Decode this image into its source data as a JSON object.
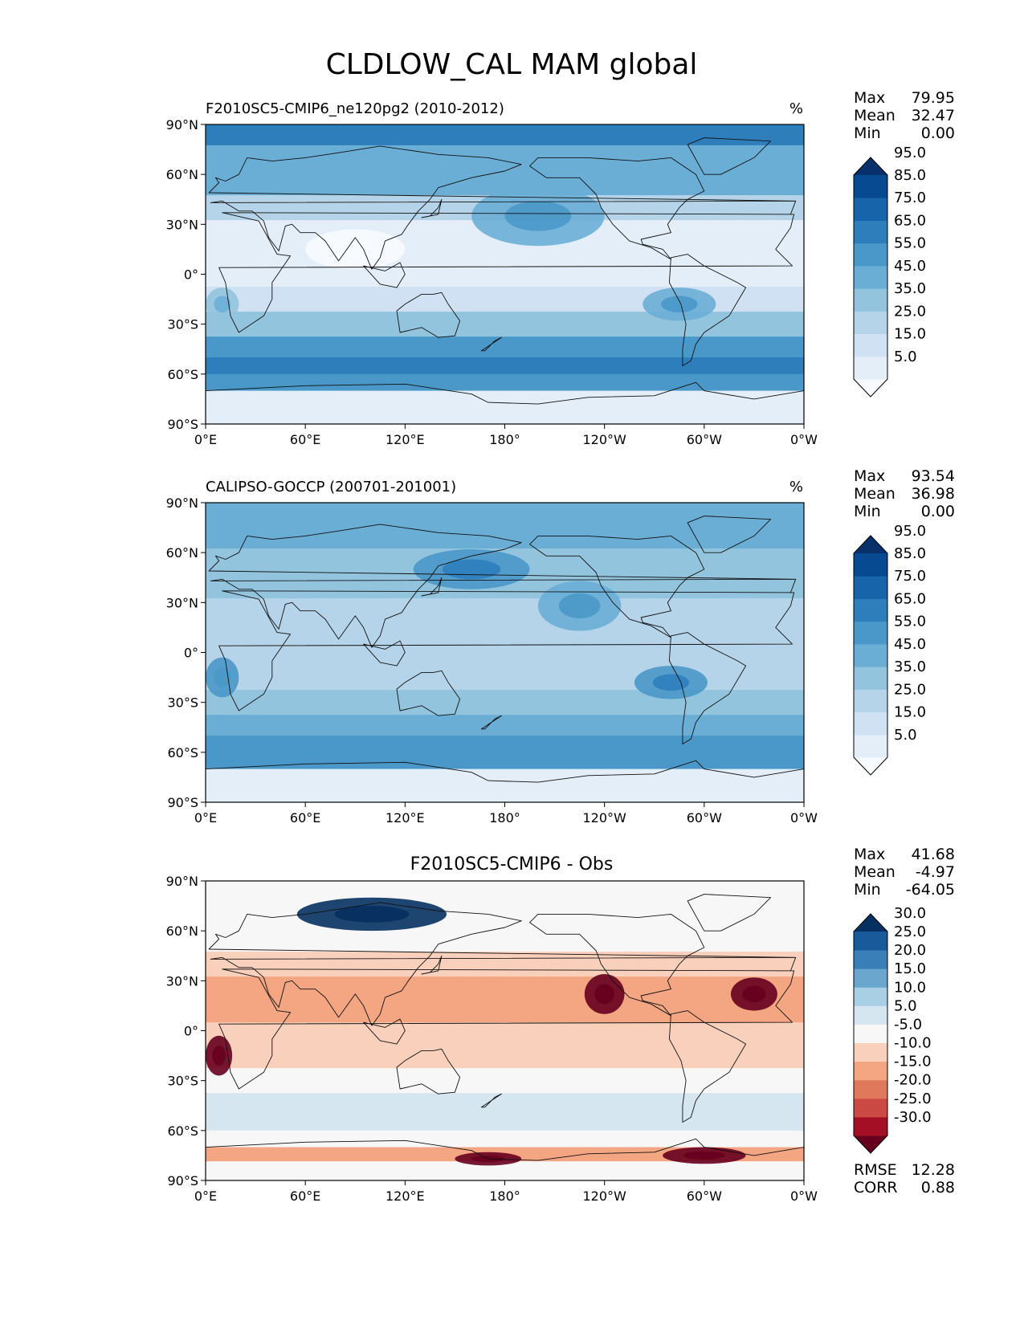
{
  "title": "CLDLOW_CAL MAM global",
  "chart_data": [
    {
      "type": "heatmap",
      "title": "F2010SC5-CMIP6_ne120pg2 (2010-2012)",
      "units": "%",
      "stats": [
        {
          "label": "Max",
          "value": "79.95"
        },
        {
          "label": "Mean",
          "value": "32.47"
        },
        {
          "label": "Min",
          "value": "0.00"
        }
      ],
      "colorbar": {
        "colors": [
          "#f7fbff",
          "#e3eef9",
          "#cfe1f2",
          "#b5d4e9",
          "#93c4de",
          "#6aaed6",
          "#4a98c9",
          "#2e7ebc",
          "#1764ab",
          "#084a91",
          "#08306b"
        ],
        "labels": [
          "5.0",
          "15.0",
          "25.0",
          "35.0",
          "45.0",
          "55.0",
          "65.0",
          "75.0",
          "85.0",
          "95.0"
        ]
      },
      "x_ticks": [
        "0°E",
        "60°E",
        "120°E",
        "180°",
        "120°W",
        "60°W",
        "0°W"
      ],
      "y_ticks": [
        "90°N",
        "60°N",
        "30°N",
        "0°",
        "30°S",
        "60°S",
        "90°S"
      ],
      "xlim": [
        0,
        360
      ],
      "ylim": [
        -90,
        90
      ],
      "lat_profile": [
        {
          "lat": 85,
          "value": 70
        },
        {
          "lat": 70,
          "value": 55
        },
        {
          "lat": 55,
          "value": 48
        },
        {
          "lat": 40,
          "value": 28
        },
        {
          "lat": 25,
          "value": 15
        },
        {
          "lat": 10,
          "value": 12
        },
        {
          "lat": 0,
          "value": 14
        },
        {
          "lat": -15,
          "value": 22
        },
        {
          "lat": -30,
          "value": 40
        },
        {
          "lat": -45,
          "value": 62
        },
        {
          "lat": -55,
          "value": 72
        },
        {
          "lat": -65,
          "value": 62
        },
        {
          "lat": -75,
          "value": 12
        },
        {
          "lat": -88,
          "value": 8
        }
      ],
      "anomalies": [
        {
          "lon": 285,
          "lat": -18,
          "delta": 30,
          "rx": 22,
          "ry": 10
        },
        {
          "lon": 200,
          "lat": 35,
          "delta": 25,
          "rx": 40,
          "ry": 18
        },
        {
          "lon": 10,
          "lat": -18,
          "delta": 22,
          "rx": 10,
          "ry": 10
        },
        {
          "lon": 90,
          "lat": 15,
          "delta": -10,
          "rx": 30,
          "ry": 12
        }
      ]
    },
    {
      "type": "heatmap",
      "title": "CALIPSO-GOCCP (200701-201001)",
      "units": "%",
      "stats": [
        {
          "label": "Max",
          "value": "93.54"
        },
        {
          "label": "Mean",
          "value": "36.98"
        },
        {
          "label": "Min",
          "value": "0.00"
        }
      ],
      "colorbar": {
        "colors": [
          "#f7fbff",
          "#e3eef9",
          "#cfe1f2",
          "#b5d4e9",
          "#93c4de",
          "#6aaed6",
          "#4a98c9",
          "#2e7ebc",
          "#1764ab",
          "#084a91",
          "#08306b"
        ],
        "labels": [
          "5.0",
          "15.0",
          "25.0",
          "35.0",
          "45.0",
          "55.0",
          "65.0",
          "75.0",
          "85.0",
          "95.0"
        ]
      },
      "x_ticks": [
        "0°E",
        "60°E",
        "120°E",
        "180°",
        "120°W",
        "60°W",
        "0°W"
      ],
      "y_ticks": [
        "90°N",
        "60°N",
        "30°N",
        "0°",
        "30°S",
        "60°S",
        "90°S"
      ],
      "xlim": [
        0,
        360
      ],
      "ylim": [
        -90,
        90
      ],
      "lat_profile": [
        {
          "lat": 82,
          "value": 50
        },
        {
          "lat": 70,
          "value": 48
        },
        {
          "lat": 55,
          "value": 45
        },
        {
          "lat": 40,
          "value": 40
        },
        {
          "lat": 25,
          "value": 32
        },
        {
          "lat": 10,
          "value": 28
        },
        {
          "lat": 0,
          "value": 30
        },
        {
          "lat": -15,
          "value": 35
        },
        {
          "lat": -30,
          "value": 42
        },
        {
          "lat": -45,
          "value": 55
        },
        {
          "lat": -55,
          "value": 62
        },
        {
          "lat": -65,
          "value": 60
        },
        {
          "lat": -75,
          "value": 15
        },
        {
          "lat": -82,
          "value": 10
        }
      ],
      "anomalies": [
        {
          "lon": 280,
          "lat": -18,
          "delta": 25,
          "rx": 22,
          "ry": 10
        },
        {
          "lon": 225,
          "lat": 28,
          "delta": 22,
          "rx": 25,
          "ry": 15
        },
        {
          "lon": 10,
          "lat": -15,
          "delta": 22,
          "rx": 10,
          "ry": 12
        },
        {
          "lon": 160,
          "lat": 50,
          "delta": 18,
          "rx": 35,
          "ry": 12
        }
      ]
    },
    {
      "type": "heatmap",
      "title": "F2010SC5-CMIP6 - Obs",
      "units": "",
      "stats": [
        {
          "label": "Max",
          "value": "41.68"
        },
        {
          "label": "Mean",
          "value": "-4.97"
        },
        {
          "label": "Min",
          "value": "-64.05"
        }
      ],
      "extra_stats": [
        {
          "label": "RMSE",
          "value": "12.28"
        },
        {
          "label": "CORR",
          "value": "0.88"
        }
      ],
      "colorbar": {
        "colors": [
          "#67001f",
          "#a50f26",
          "#cb4a43",
          "#e0785b",
          "#f4a582",
          "#f9d0bb",
          "#f7f7f7",
          "#d6e6f1",
          "#a8cfe4",
          "#6aa6cd",
          "#3b7fb9",
          "#185a9a",
          "#053061"
        ],
        "labels": [
          "-30.0",
          "-25.0",
          "-20.0",
          "-15.0",
          "-10.0",
          "-5.0",
          "5.0",
          "10.0",
          "15.0",
          "20.0",
          "25.0",
          "30.0"
        ]
      },
      "x_ticks": [
        "0°E",
        "60°E",
        "120°E",
        "180°",
        "120°W",
        "60°W",
        "0°W"
      ],
      "y_ticks": [
        "90°N",
        "60°N",
        "30°N",
        "0°",
        "30°S",
        "60°S",
        "90°S"
      ],
      "xlim": [
        0,
        360
      ],
      "ylim": [
        -90,
        90
      ],
      "lat_profile": [
        {
          "lat": 82,
          "value": -3
        },
        {
          "lat": 70,
          "value": 2
        },
        {
          "lat": 55,
          "value": 0
        },
        {
          "lat": 40,
          "value": -5
        },
        {
          "lat": 25,
          "value": -12
        },
        {
          "lat": 10,
          "value": -10
        },
        {
          "lat": 0,
          "value": -8
        },
        {
          "lat": -15,
          "value": -8
        },
        {
          "lat": -30,
          "value": -3
        },
        {
          "lat": -45,
          "value": 10
        },
        {
          "lat": -55,
          "value": 8
        },
        {
          "lat": -65,
          "value": -2
        },
        {
          "lat": -75,
          "value": -12
        },
        {
          "lat": -82,
          "value": -2
        }
      ],
      "anomalies": [
        {
          "lon": 100,
          "lat": 70,
          "delta": 30,
          "rx": 45,
          "ry": 10
        },
        {
          "lon": 240,
          "lat": 22,
          "delta": -22,
          "rx": 12,
          "ry": 12
        },
        {
          "lon": 330,
          "lat": 22,
          "delta": -20,
          "rx": 14,
          "ry": 10
        },
        {
          "lon": 8,
          "lat": -15,
          "delta": -30,
          "rx": 8,
          "ry": 12
        },
        {
          "lon": 300,
          "lat": -75,
          "delta": -30,
          "rx": 25,
          "ry": 5
        },
        {
          "lon": 170,
          "lat": -77,
          "delta": -25,
          "rx": 20,
          "ry": 4
        }
      ]
    }
  ]
}
